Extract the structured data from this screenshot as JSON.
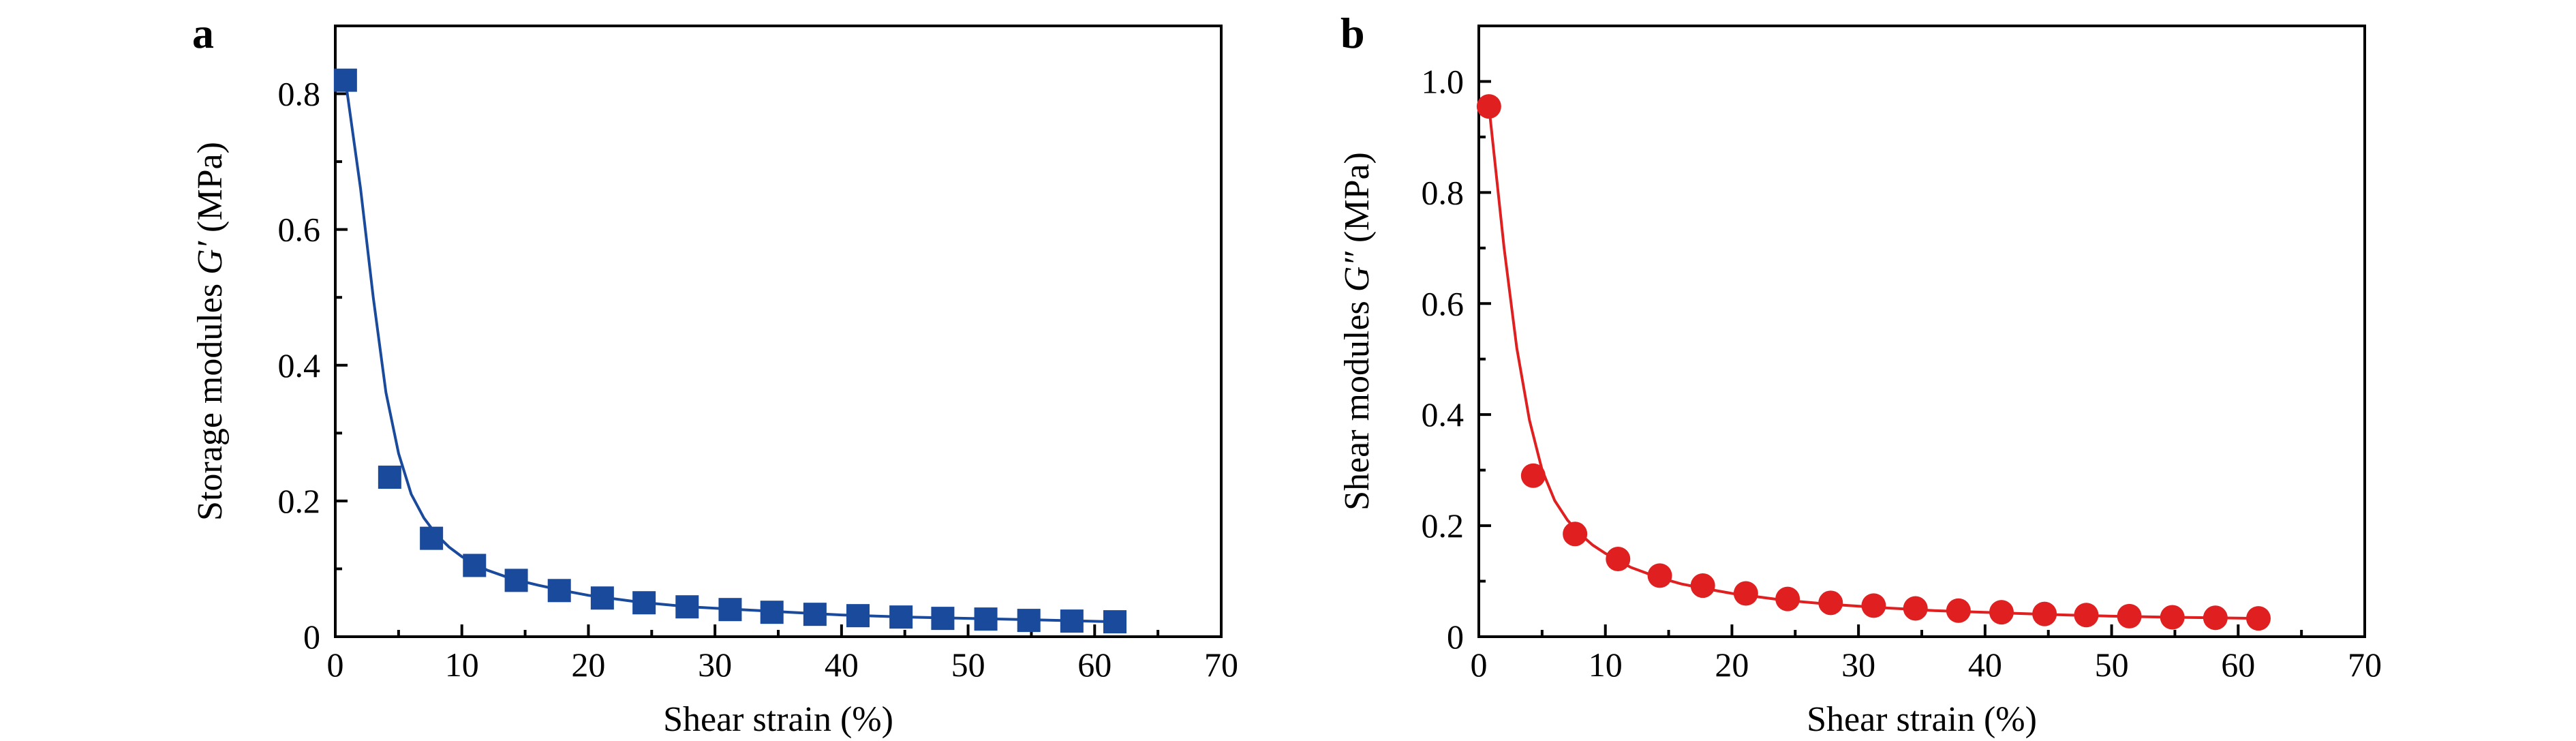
{
  "chart_data": [
    {
      "panel": "a",
      "type": "line",
      "xlabel": "Shear strain (%)",
      "ylabel": {
        "prefix": "Storage modules ",
        "symbol": "G′",
        "suffix": " (MPa)"
      },
      "xlim": [
        0,
        70
      ],
      "ylim": [
        0,
        0.9
      ],
      "xticks": [
        0,
        10,
        20,
        30,
        40,
        50,
        60,
        70
      ],
      "xtick_labels": [
        "0",
        "10",
        "20",
        "30",
        "40",
        "50",
        "60",
        "70"
      ],
      "yticks": [
        0,
        0.2,
        0.4,
        0.6,
        0.8
      ],
      "ytick_labels": [
        "0",
        "0.2",
        "0.4",
        "0.6",
        "0.8"
      ],
      "grid": false,
      "color": "#1a4a9c",
      "marker": "square",
      "x": [
        0.8,
        4.3,
        7.6,
        11.0,
        14.3,
        17.7,
        21.1,
        24.4,
        27.8,
        31.2,
        34.5,
        37.9,
        41.3,
        44.7,
        48.0,
        51.4,
        54.8,
        58.2,
        61.6
      ],
      "values": [
        0.82,
        0.235,
        0.145,
        0.105,
        0.083,
        0.068,
        0.057,
        0.05,
        0.044,
        0.04,
        0.036,
        0.033,
        0.031,
        0.029,
        0.027,
        0.026,
        0.024,
        0.023,
        0.022
      ],
      "fit_curve": {
        "x": [
          0.8,
          2.0,
          3.0,
          4.0,
          5.0,
          6.0,
          7.0,
          8.0,
          9.0,
          10.0,
          12.0,
          14.0,
          16.0,
          18.0,
          20.0,
          24.0,
          28.0,
          32.0,
          36.0,
          40.0,
          45.0,
          50.0,
          55.0,
          61.6
        ],
        "y": [
          0.82,
          0.66,
          0.5,
          0.36,
          0.27,
          0.21,
          0.175,
          0.15,
          0.132,
          0.118,
          0.098,
          0.085,
          0.076,
          0.068,
          0.061,
          0.051,
          0.044,
          0.04,
          0.036,
          0.032,
          0.029,
          0.027,
          0.025,
          0.022
        ]
      }
    },
    {
      "panel": "b",
      "type": "line",
      "xlabel": "Shear strain (%)",
      "ylabel": {
        "prefix": "Shear modules ",
        "symbol": "G″",
        "suffix": " (MPa)"
      },
      "xlim": [
        0,
        70
      ],
      "ylim": [
        0,
        1.1
      ],
      "xticks": [
        0,
        10,
        20,
        30,
        40,
        50,
        60,
        70
      ],
      "xtick_labels": [
        "0",
        "10",
        "20",
        "30",
        "40",
        "50",
        "60",
        "70"
      ],
      "yticks": [
        0,
        0.2,
        0.4,
        0.6,
        0.8,
        1.0
      ],
      "ytick_labels": [
        "0",
        "0.2",
        "0.4",
        "0.6",
        "0.8",
        "1.0"
      ],
      "grid": false,
      "color": "#e02020",
      "marker": "circle",
      "x": [
        0.8,
        4.3,
        7.6,
        11.0,
        14.3,
        17.7,
        21.1,
        24.4,
        27.8,
        31.2,
        34.5,
        37.9,
        41.3,
        44.7,
        48.0,
        51.4,
        54.8,
        58.2,
        61.6
      ],
      "values": [
        0.955,
        0.29,
        0.185,
        0.14,
        0.11,
        0.092,
        0.078,
        0.068,
        0.061,
        0.056,
        0.051,
        0.047,
        0.044,
        0.041,
        0.039,
        0.037,
        0.035,
        0.034,
        0.033
      ],
      "fit_curve": {
        "x": [
          0.8,
          2.0,
          3.0,
          4.0,
          5.0,
          6.0,
          7.0,
          8.0,
          9.0,
          10.0,
          12.0,
          14.0,
          16.0,
          18.0,
          20.0,
          24.0,
          28.0,
          32.0,
          36.0,
          40.0,
          45.0,
          50.0,
          55.0,
          61.6
        ],
        "y": [
          0.955,
          0.7,
          0.52,
          0.39,
          0.3,
          0.245,
          0.21,
          0.185,
          0.165,
          0.15,
          0.125,
          0.108,
          0.095,
          0.086,
          0.078,
          0.066,
          0.058,
          0.052,
          0.047,
          0.044,
          0.04,
          0.037,
          0.035,
          0.033
        ]
      }
    }
  ]
}
